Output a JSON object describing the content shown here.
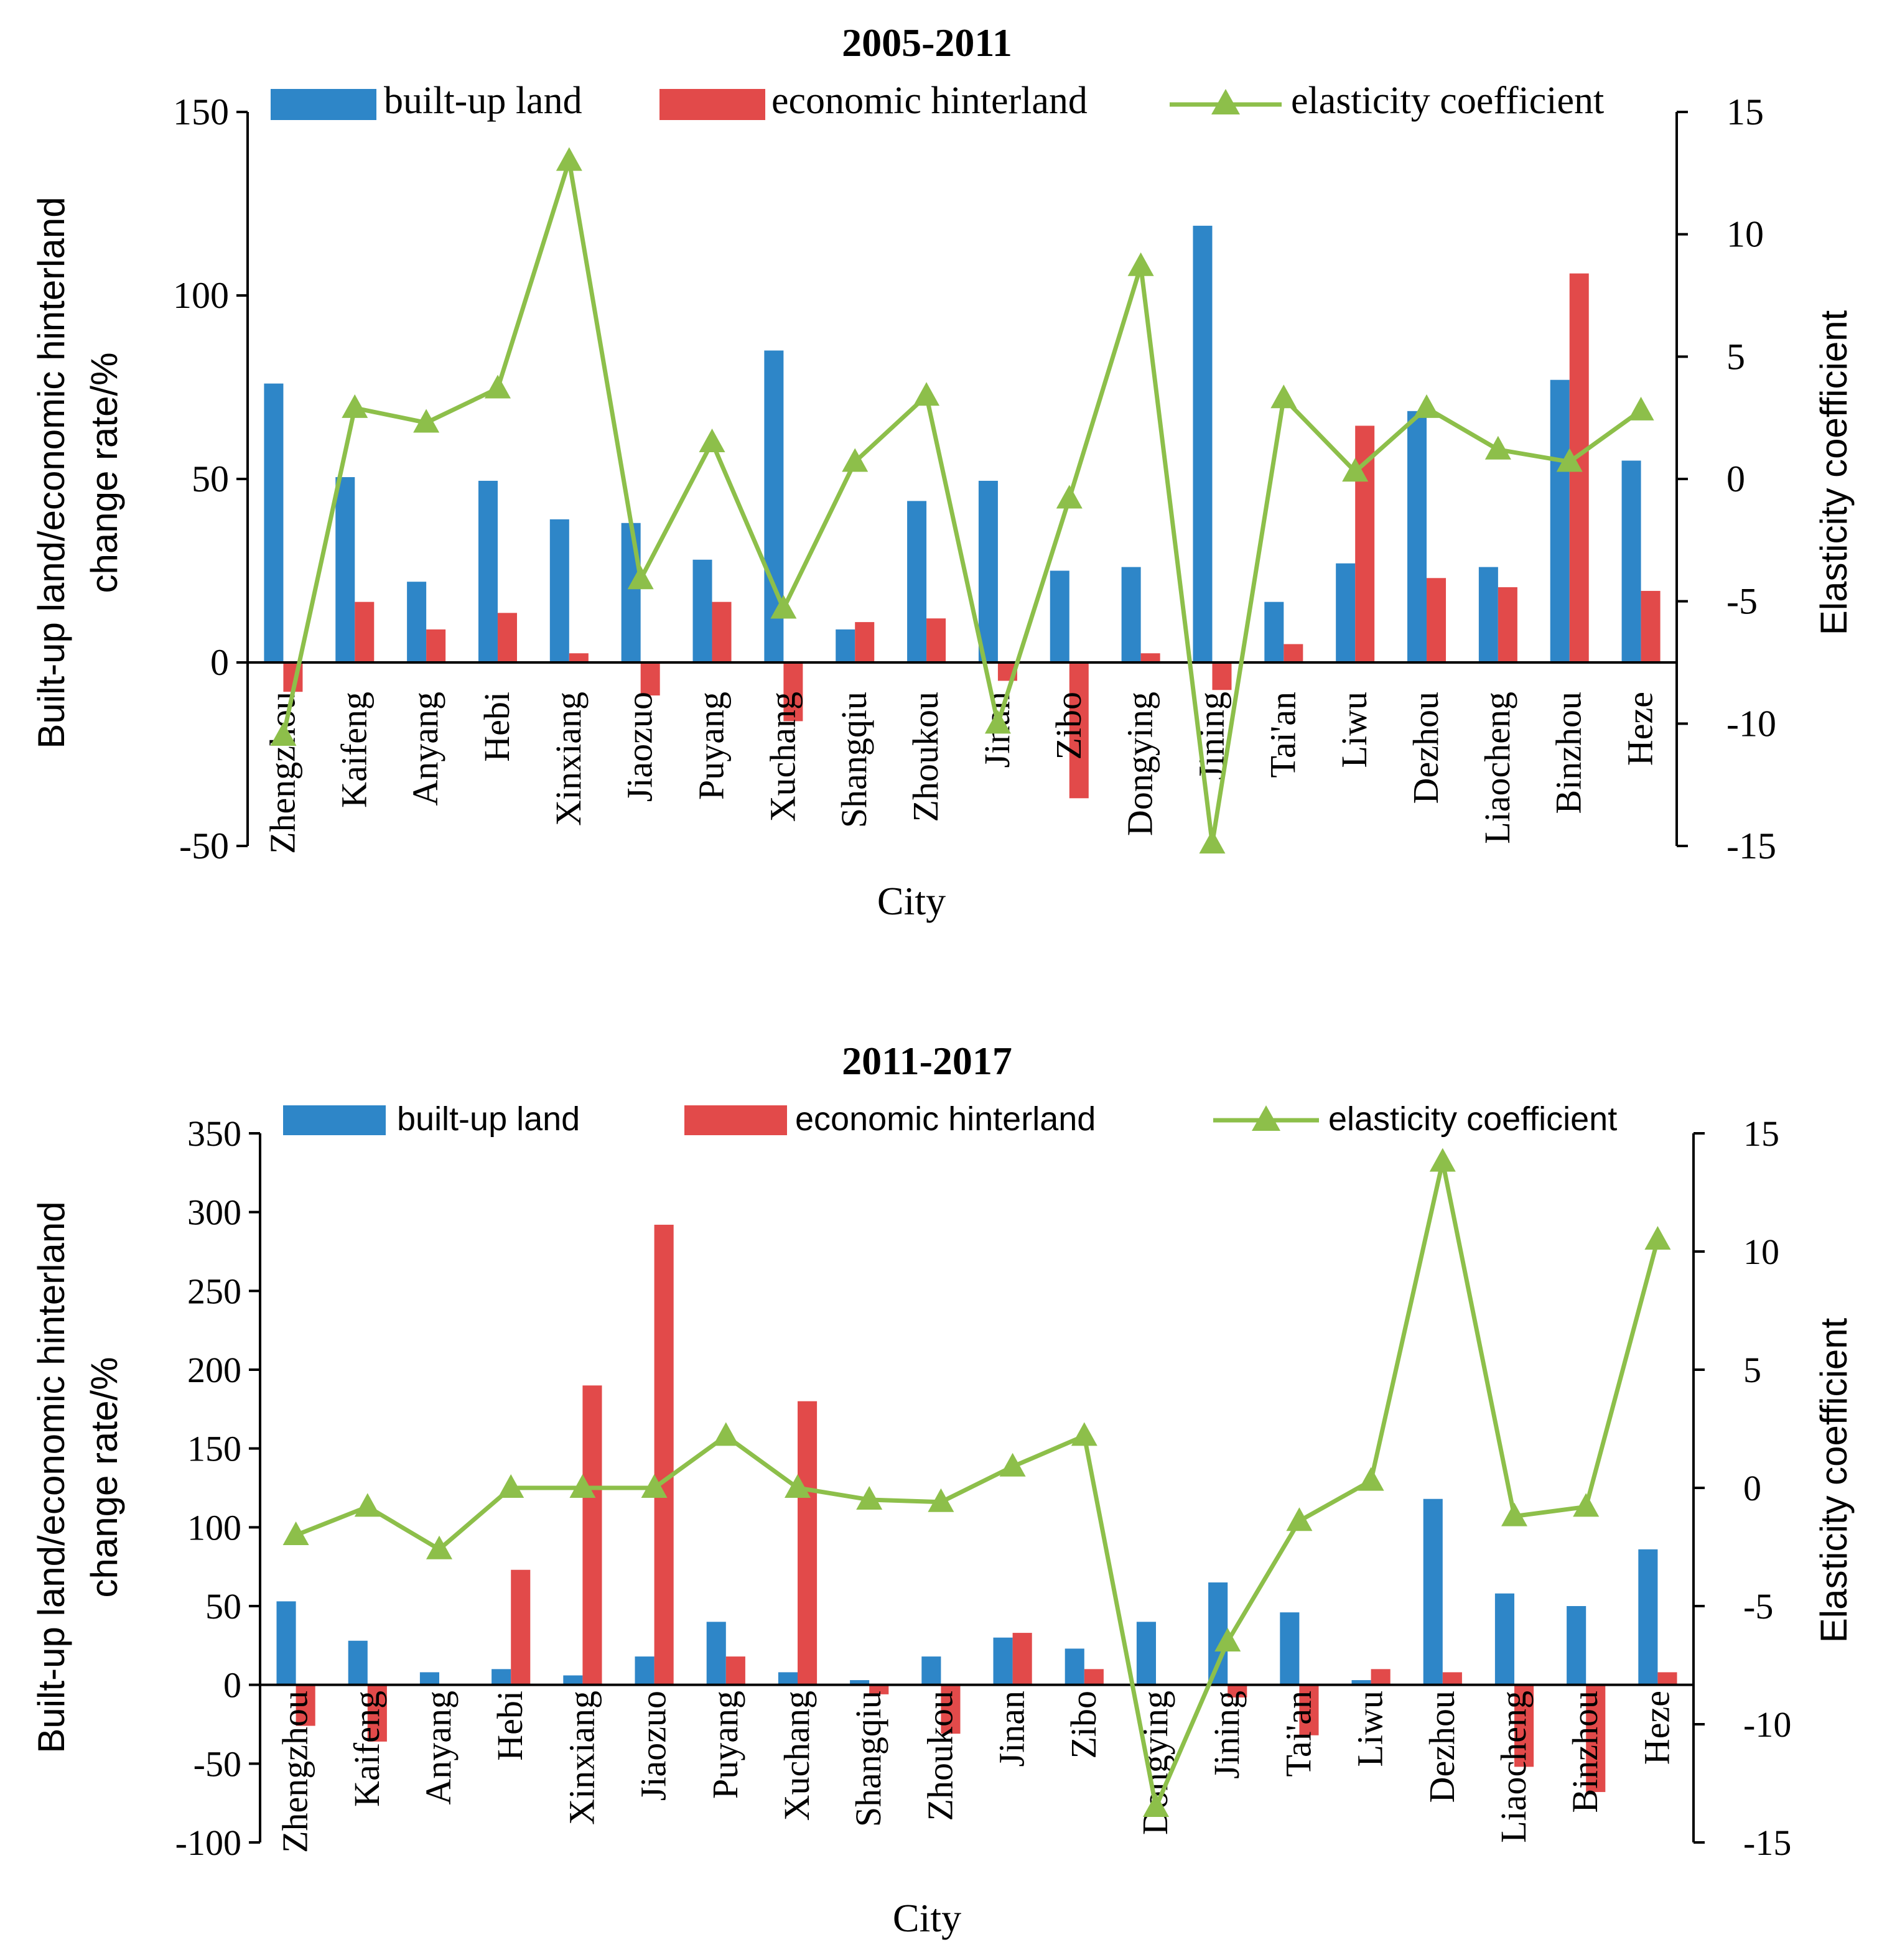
{
  "colors": {
    "built_up": "#2E86C8",
    "hinterland": "#E24A4A",
    "elasticity": "#8DBF4A",
    "axis": "#000000"
  },
  "chart_data": [
    {
      "type": "bar",
      "title": "2005-2011",
      "xlabel": "City",
      "ylabel_line1": "Built-up land/economic hinterland",
      "ylabel_line2": "change rate/%",
      "y2label": "Elasticity coefficient",
      "ylim": [
        -50,
        150
      ],
      "yticks": [
        -50,
        0,
        50,
        100,
        150
      ],
      "y2lim": [
        -15,
        15
      ],
      "y2ticks": [
        -15,
        -10,
        -5,
        0,
        5,
        10,
        15
      ],
      "legend": [
        "built-up land",
        "economic hinterland",
        "elasticity coefficient"
      ],
      "legend_position": "top",
      "categories": [
        "Zhengzhou",
        "Kaifeng",
        "Anyang",
        "Hebi",
        "Xinxiang",
        "Jiaozuo",
        "Puyang",
        "Xuchang",
        "Shangqiu",
        "Zhoukou",
        "Jinan",
        "Zibo",
        "Dongying",
        "Jining",
        "Tai'an",
        "Liwu",
        "Dezhou",
        "Liaocheng",
        "Binzhou",
        "Heze"
      ],
      "series": [
        {
          "name": "built-up land",
          "kind": "bar",
          "axis": "left",
          "values": [
            76,
            50.5,
            22,
            49.5,
            39,
            38,
            28,
            85,
            9,
            44,
            49.5,
            25,
            26,
            119,
            16.5,
            27,
            68.5,
            26,
            77,
            55
          ]
        },
        {
          "name": "economic hinterland",
          "kind": "bar",
          "axis": "left",
          "values": [
            -8,
            16.5,
            9,
            13.5,
            2.5,
            -9,
            16.5,
            -16,
            11,
            12,
            -5,
            -37,
            2.5,
            -7.5,
            5,
            64.5,
            23,
            20.5,
            106,
            19.5
          ]
        },
        {
          "name": "elasticity coefficient",
          "kind": "line",
          "axis": "right",
          "values": [
            -10.5,
            2.9,
            2.3,
            3.7,
            13,
            -4.1,
            1.5,
            -5.3,
            0.7,
            3.4,
            -10,
            -0.8,
            8.7,
            -14.9,
            3.3,
            0.3,
            2.9,
            1.2,
            0.7,
            2.8
          ]
        }
      ]
    },
    {
      "type": "bar",
      "title": "2011-2017",
      "xlabel": "City",
      "ylabel_line1": "Built-up land/economic hinterland",
      "ylabel_line2": "change rate/%",
      "y2label": "Elasticity coefficient",
      "ylim": [
        -100,
        350
      ],
      "yticks": [
        -100,
        -50,
        0,
        50,
        100,
        150,
        200,
        250,
        300,
        350
      ],
      "y2lim": [
        -15,
        15
      ],
      "y2ticks": [
        -15,
        -10,
        -5,
        0,
        5,
        10,
        15
      ],
      "legend": [
        "built-up land",
        "economic hinterland",
        "elasticity coefficient"
      ],
      "legend_position": "top",
      "categories": [
        "Zhengzhou",
        "Kaifeng",
        "Anyang",
        "Hebi",
        "Xinxiang",
        "Jiaozuo",
        "Puyang",
        "Xuchang",
        "Shangqiu",
        "Zhoukou",
        "Jinan",
        "Zibo",
        "Dongying",
        "Jining",
        "Tai'an",
        "Liwu",
        "Dezhou",
        "Liaocheng",
        "Binzhou",
        "Heze"
      ],
      "series": [
        {
          "name": "built-up land",
          "kind": "bar",
          "axis": "left",
          "values": [
            53,
            28,
            8,
            10,
            6,
            18,
            40,
            8,
            3,
            18,
            30,
            23,
            40,
            65,
            46,
            3,
            118,
            58,
            50,
            86
          ]
        },
        {
          "name": "economic hinterland",
          "kind": "bar",
          "axis": "left",
          "values": [
            -26,
            -36,
            0,
            73,
            190,
            292,
            18,
            180,
            -6,
            -31,
            33,
            10,
            0,
            -8,
            -32,
            10,
            8,
            -52,
            -68,
            8
          ]
        },
        {
          "name": "elasticity coefficient",
          "kind": "line",
          "axis": "right",
          "values": [
            -2,
            -0.8,
            -2.6,
            0,
            0,
            0,
            2.2,
            0,
            -0.5,
            -0.6,
            0.9,
            2.2,
            -13.5,
            -6.5,
            -1.4,
            0.3,
            13.8,
            -1.2,
            -0.8,
            10.5
          ]
        }
      ]
    }
  ]
}
